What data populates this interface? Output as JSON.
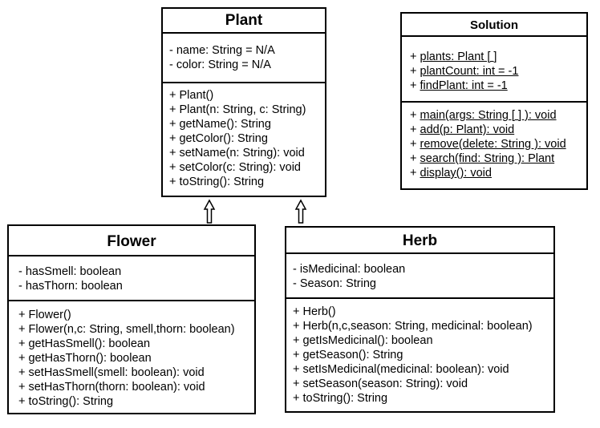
{
  "classes": {
    "plant": {
      "name": "Plant",
      "attributes": [
        "- name: String = N/A",
        "- color: String = N/A"
      ],
      "operations": [
        "+ Plant()",
        "+ Plant(n: String, c: String)",
        "+ getName(): String",
        "+ getColor(): String",
        "+ setName(n: String): void",
        "+ setColor(c: String): void",
        "+ toString(): String"
      ]
    },
    "solution": {
      "name": "Solution",
      "attributes": [
        "+ plants: Plant [ ]",
        "+ plantCount: int = -1",
        "+ findPlant: int = -1"
      ],
      "operations": [
        "+ main(args: String [ ] ): void",
        "+ add(p: Plant): void",
        "+ remove(delete: String ): void",
        "+ search(find: String ): Plant",
        "+ display(): void"
      ]
    },
    "flower": {
      "name": "Flower",
      "attributes": [
        "- hasSmell: boolean",
        "- hasThorn: boolean"
      ],
      "operations": [
        "+ Flower()",
        "+ Flower(n,c: String, smell,thorn: boolean)",
        "+ getHasSmell(): boolean",
        "+ getHasThorn(): boolean",
        "+ setHasSmell(smell: boolean): void",
        "+ setHasThorn(thorn: boolean): void",
        "+ toString(): String"
      ]
    },
    "herb": {
      "name": "Herb",
      "attributes": [
        "- isMedicinal: boolean",
        "- Season: String"
      ],
      "operations": [
        "+ Herb()",
        "+ Herb(n,c,season: String, medicinal: boolean)",
        "+ getIsMedicinal(): boolean",
        "+ getSeason(): String",
        "+ setIsMedicinal(medicinal: boolean): void",
        "+ setSeason(season: String): void",
        "+ toString(): String"
      ]
    }
  },
  "relations": [
    {
      "type": "generalization",
      "from": "Flower",
      "to": "Plant"
    },
    {
      "type": "generalization",
      "from": "Herb",
      "to": "Plant"
    }
  ]
}
